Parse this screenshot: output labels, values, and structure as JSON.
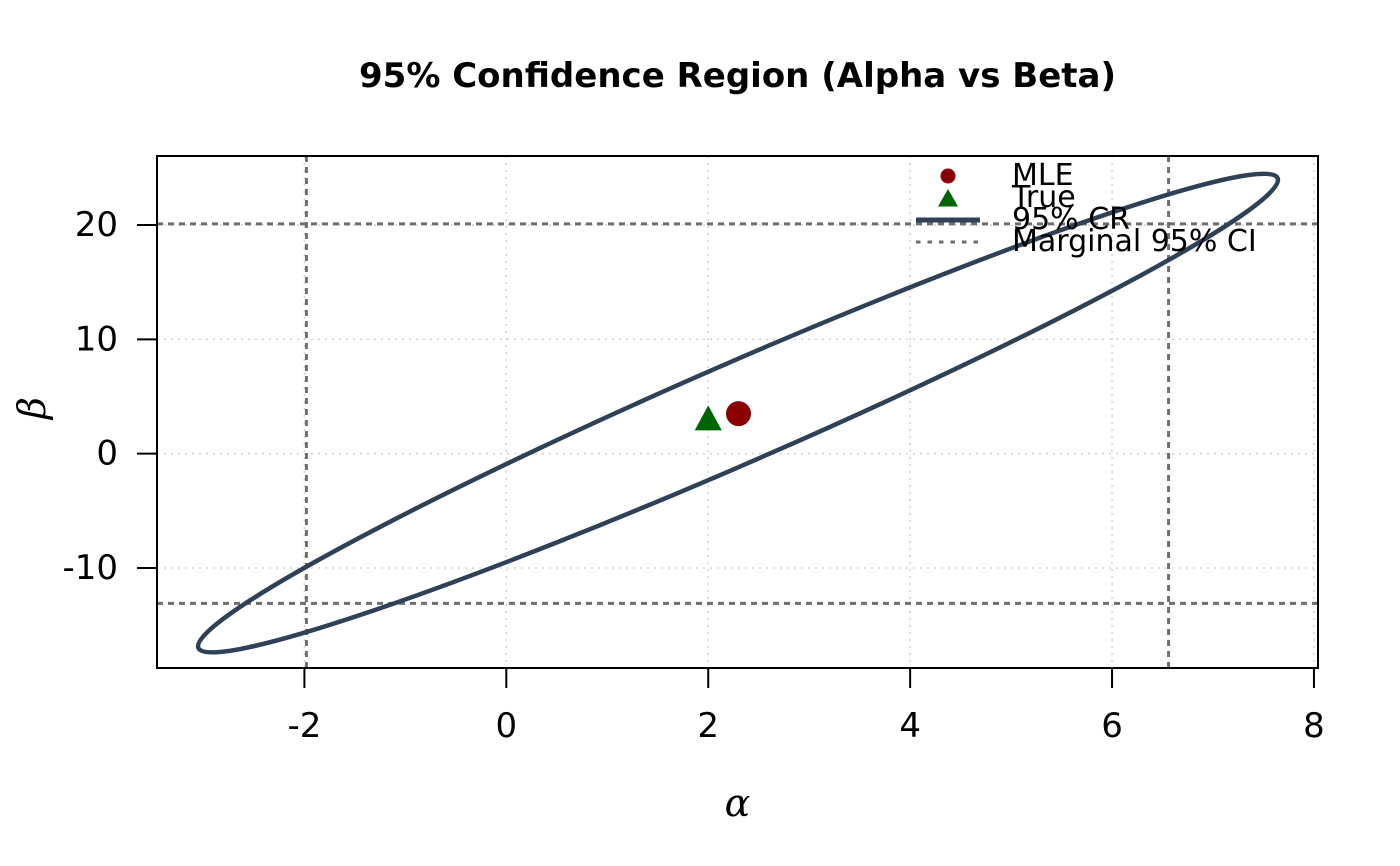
{
  "figure": {
    "title": "95% Confidence Region (Alpha vs Beta)"
  },
  "chart_data": {
    "type": "scatter",
    "title": "95% Confidence Region (Alpha vs Beta)",
    "xlabel": "α",
    "ylabel": "β",
    "xlim": [
      -3.46,
      8.04
    ],
    "ylim": [
      -18.75,
      26.04
    ],
    "x_ticks": [
      -2,
      0,
      2,
      4,
      6,
      8
    ],
    "y_ticks": [
      -10,
      0,
      10,
      20
    ],
    "grid": {
      "show": true,
      "style": "dotted",
      "color": "#D2D2D2"
    },
    "points": [
      {
        "name": "MLE",
        "x": 2.3,
        "y": 3.5,
        "marker": "circle",
        "color": "#8B0000"
      },
      {
        "name": "True",
        "x": 2.0,
        "y": 3.0,
        "marker": "triangle",
        "color": "#006400"
      }
    ],
    "confidence_region": {
      "label": "95% CR",
      "color": "#2E4156",
      "center": {
        "alpha": 2.3,
        "beta": 3.55
      },
      "tip_low": {
        "x": -3.05,
        "y": -17.0
      },
      "tip_high": {
        "x": 7.64,
        "y": 24.1
      },
      "vertical_half_chord": 4.75
    },
    "marginal_ci": {
      "label": "Marginal 95% CI",
      "color": "#6F6F6F",
      "alpha": [
        -1.98,
        6.56
      ],
      "beta": [
        -13.1,
        20.1
      ]
    },
    "legend": {
      "position": "top-right",
      "items": [
        {
          "label": "MLE",
          "key": "point-circle",
          "color": "#8B0000"
        },
        {
          "label": "True",
          "key": "point-triangle",
          "color": "#006400"
        },
        {
          "label": "95% CR",
          "key": "line-solid",
          "color": "#2E4156"
        },
        {
          "label": "Marginal 95% CI",
          "key": "line-dotted",
          "color": "#6F6F6F"
        }
      ]
    },
    "axis_color": "#000000"
  }
}
